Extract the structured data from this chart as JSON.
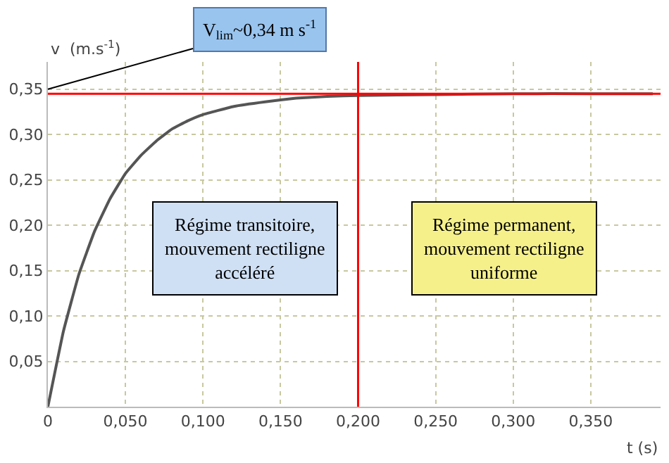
{
  "chart_data": {
    "type": "line",
    "xlabel": "t (s)",
    "ylabel": "v  (m.s$^{-1}$)",
    "x": [
      0,
      0.01,
      0.02,
      0.03,
      0.04,
      0.05,
      0.06,
      0.07,
      0.08,
      0.09,
      0.1,
      0.12,
      0.14,
      0.16,
      0.18,
      0.2,
      0.25,
      0.3,
      0.35,
      0.39
    ],
    "series": [
      {
        "color": "#555555",
        "values": [
          0,
          0.083,
          0.146,
          0.193,
          0.229,
          0.257,
          0.277,
          0.293,
          0.306,
          0.315,
          0.322,
          0.331,
          0.336,
          0.34,
          0.342,
          0.343,
          0.344,
          0.345,
          0.345,
          0.345
        ]
      }
    ],
    "xlim": [
      0,
      0.395
    ],
    "ylim": [
      0,
      0.38
    ],
    "xticks": [
      {
        "value": 0,
        "label": "0"
      },
      {
        "value": 0.05,
        "label": "0,050"
      },
      {
        "value": 0.1,
        "label": "0,100"
      },
      {
        "value": 0.15,
        "label": "0,150"
      },
      {
        "value": 0.2,
        "label": "0,200"
      },
      {
        "value": 0.25,
        "label": "0,250"
      },
      {
        "value": 0.3,
        "label": "0,300"
      },
      {
        "value": 0.35,
        "label": "0,350"
      }
    ],
    "yticks": [
      {
        "value": 0.05,
        "label": "0,05"
      },
      {
        "value": 0.1,
        "label": "0,10"
      },
      {
        "value": 0.15,
        "label": "0,15"
      },
      {
        "value": 0.2,
        "label": "0,20"
      },
      {
        "value": 0.25,
        "label": "0,25"
      },
      {
        "value": 0.3,
        "label": "0,30"
      },
      {
        "value": 0.35,
        "label": "0,35"
      }
    ],
    "grid": true,
    "line_style": "solid",
    "marker": "none",
    "ref_lines": [
      {
        "axis": "y",
        "value": 0.345,
        "color": "#ff0000"
      },
      {
        "axis": "x",
        "value": 0.2,
        "color": "#ff0000"
      }
    ],
    "annotations": [
      {
        "text": "V$_{lim}$~0,34 m s$^{-1}$",
        "x": 0,
        "y": 0.35
      },
      "Régime transitoire, mouvement rectiligne accéléré",
      "Régime permanent, mouvement rectiligne uniforme"
    ]
  }
}
